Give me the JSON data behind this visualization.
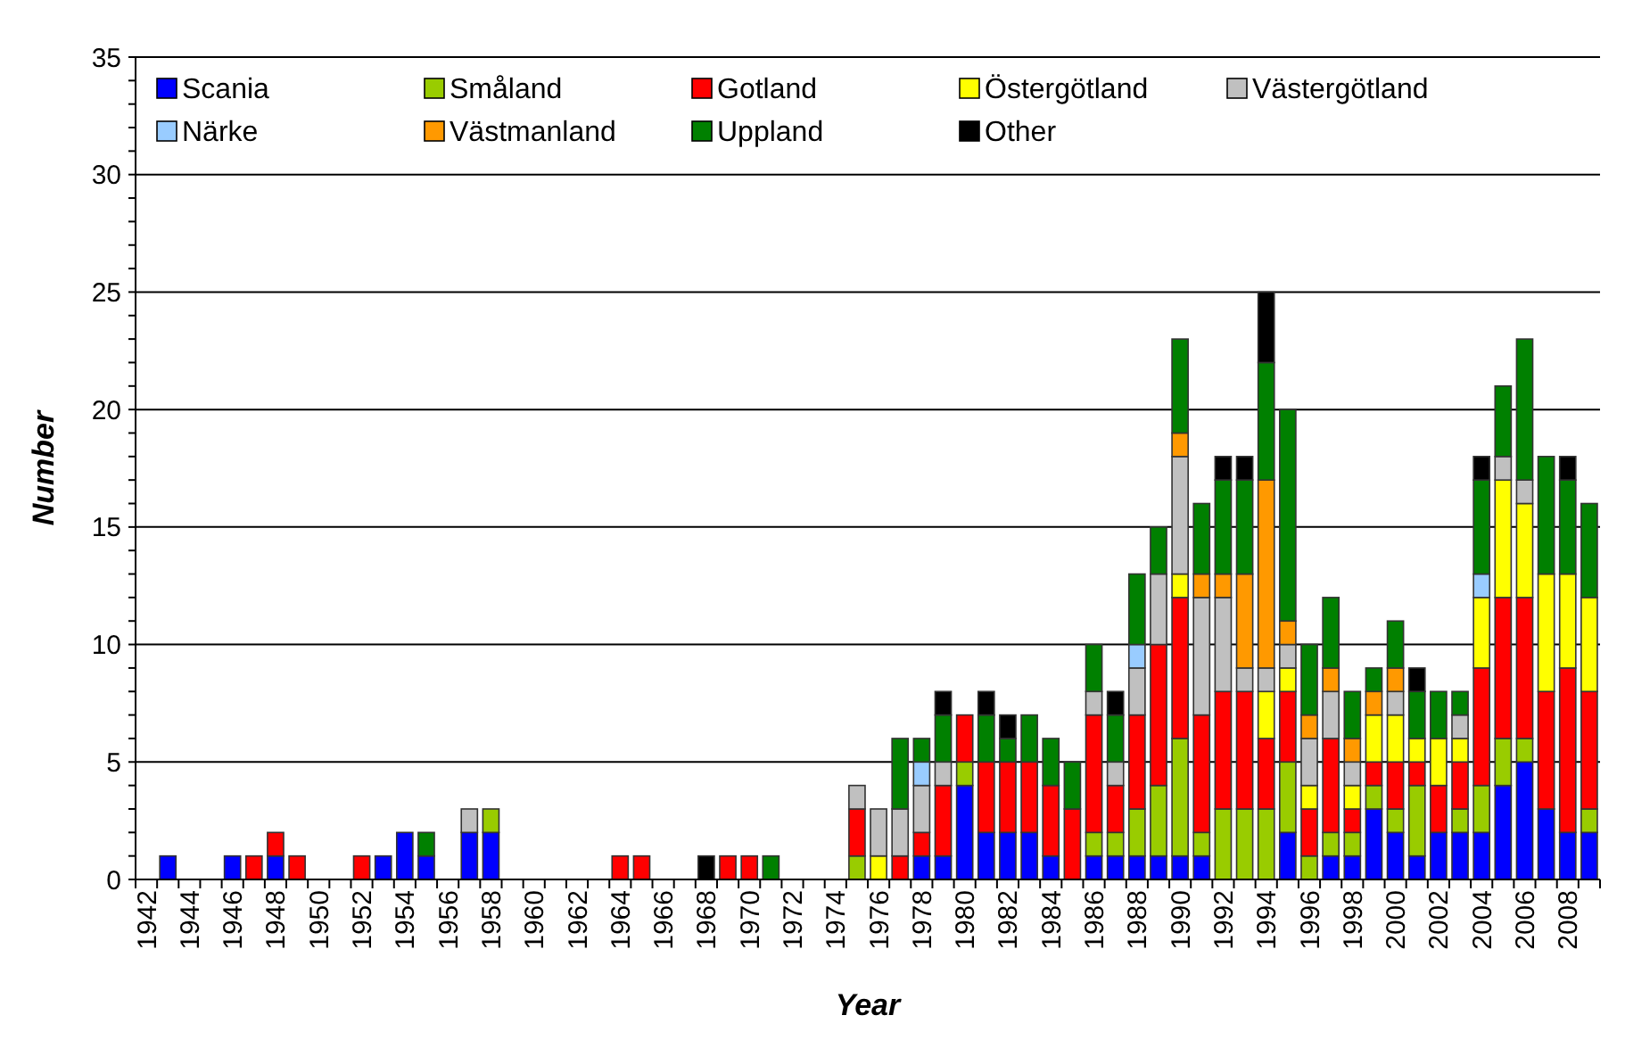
{
  "chart_data": {
    "type": "bar",
    "stacked": true,
    "xlabel": "Year",
    "ylabel": "Number",
    "categories": [
      "1942",
      null,
      "1944",
      null,
      "1946",
      null,
      "1948",
      null,
      "1950",
      null,
      "1952",
      null,
      "1954",
      null,
      "1956",
      null,
      "1958",
      null,
      "1960",
      null,
      "1962",
      null,
      "1964",
      null,
      "1966",
      null,
      "1968",
      null,
      "1970",
      null,
      "1972",
      null,
      "1974",
      null,
      "1976",
      null,
      "1978",
      null,
      "1980",
      null,
      "1982",
      null,
      "1984",
      null,
      "1986",
      null,
      "1988",
      null,
      "1990",
      null,
      "1992",
      null,
      "1994",
      null,
      "1996",
      null,
      "1998",
      null,
      "2000",
      null,
      "2002",
      null,
      "2004",
      null,
      "2006",
      null,
      "2008",
      null
    ],
    "series": [
      {
        "name": "Scania",
        "color": "#0000ff",
        "values": [
          null,
          1,
          null,
          null,
          1,
          null,
          1,
          null,
          null,
          null,
          null,
          1,
          2,
          1,
          null,
          2,
          2,
          null,
          null,
          null,
          null,
          null,
          null,
          null,
          null,
          null,
          null,
          null,
          null,
          null,
          null,
          null,
          null,
          null,
          null,
          null,
          1,
          1,
          4,
          2,
          2,
          2,
          1,
          null,
          1,
          1,
          1,
          1,
          1,
          1,
          null,
          null,
          null,
          2,
          null,
          1,
          1,
          3,
          2,
          1,
          2,
          2,
          2,
          4,
          5,
          3,
          2,
          2
        ]
      },
      {
        "name": "Småland",
        "color": "#99cc00",
        "values": [
          null,
          null,
          null,
          null,
          null,
          null,
          null,
          null,
          null,
          null,
          null,
          null,
          null,
          null,
          null,
          null,
          1,
          null,
          null,
          null,
          null,
          null,
          null,
          null,
          null,
          null,
          null,
          null,
          null,
          null,
          null,
          null,
          null,
          1,
          null,
          null,
          null,
          null,
          1,
          null,
          null,
          null,
          null,
          null,
          1,
          1,
          2,
          3,
          5,
          1,
          3,
          3,
          3,
          3,
          1,
          1,
          1,
          1,
          1,
          3,
          null,
          1,
          2,
          2,
          1,
          null,
          null,
          1
        ]
      },
      {
        "name": "Gotland",
        "color": "#ff0000",
        "values": [
          null,
          null,
          null,
          null,
          null,
          1,
          1,
          1,
          null,
          null,
          1,
          null,
          null,
          null,
          null,
          null,
          null,
          null,
          null,
          null,
          null,
          null,
          1,
          1,
          null,
          null,
          null,
          1,
          1,
          null,
          null,
          null,
          null,
          2,
          null,
          1,
          1,
          3,
          2,
          3,
          3,
          3,
          3,
          3,
          5,
          2,
          4,
          6,
          6,
          5,
          5,
          5,
          3,
          3,
          2,
          4,
          1,
          1,
          2,
          1,
          2,
          2,
          5,
          6,
          6,
          5,
          7,
          5
        ]
      },
      {
        "name": "Östergötland",
        "color": "#ffff00",
        "values": [
          null,
          null,
          null,
          null,
          null,
          null,
          null,
          null,
          null,
          null,
          null,
          null,
          null,
          null,
          null,
          null,
          null,
          null,
          null,
          null,
          null,
          null,
          null,
          null,
          null,
          null,
          null,
          null,
          null,
          null,
          null,
          null,
          null,
          null,
          1,
          null,
          null,
          null,
          null,
          null,
          null,
          null,
          null,
          null,
          null,
          null,
          null,
          null,
          1,
          null,
          null,
          null,
          2,
          1,
          1,
          null,
          1,
          2,
          2,
          1,
          2,
          1,
          3,
          5,
          4,
          5,
          4,
          4
        ]
      },
      {
        "name": "Västergötland",
        "color": "#c0c0c0",
        "values": [
          null,
          null,
          null,
          null,
          null,
          null,
          null,
          null,
          null,
          null,
          null,
          null,
          null,
          null,
          null,
          1,
          null,
          null,
          null,
          null,
          null,
          null,
          null,
          null,
          null,
          null,
          null,
          null,
          null,
          null,
          null,
          null,
          null,
          1,
          2,
          2,
          2,
          1,
          null,
          null,
          null,
          null,
          null,
          null,
          1,
          1,
          2,
          3,
          5,
          5,
          4,
          1,
          1,
          1,
          2,
          2,
          1,
          null,
          1,
          null,
          null,
          1,
          null,
          1,
          1,
          null,
          null,
          null
        ]
      },
      {
        "name": "Närke",
        "color": "#99ccff",
        "values": [
          null,
          null,
          null,
          null,
          null,
          null,
          null,
          null,
          null,
          null,
          null,
          null,
          null,
          null,
          null,
          null,
          null,
          null,
          null,
          null,
          null,
          null,
          null,
          null,
          null,
          null,
          null,
          null,
          null,
          null,
          null,
          null,
          null,
          null,
          null,
          null,
          1,
          null,
          null,
          null,
          null,
          null,
          null,
          null,
          null,
          null,
          1,
          null,
          null,
          null,
          null,
          null,
          null,
          null,
          null,
          null,
          null,
          null,
          null,
          null,
          null,
          null,
          1,
          null,
          null,
          null,
          null,
          null
        ]
      },
      {
        "name": "Västmanland",
        "color": "#ff9900",
        "values": [
          null,
          null,
          null,
          null,
          null,
          null,
          null,
          null,
          null,
          null,
          null,
          null,
          null,
          null,
          null,
          null,
          null,
          null,
          null,
          null,
          null,
          null,
          null,
          null,
          null,
          null,
          null,
          null,
          null,
          null,
          null,
          null,
          null,
          null,
          null,
          null,
          null,
          null,
          null,
          null,
          null,
          null,
          null,
          null,
          null,
          null,
          null,
          null,
          1,
          1,
          1,
          4,
          8,
          1,
          1,
          1,
          1,
          1,
          1,
          null,
          null,
          null,
          null,
          null,
          null,
          null,
          null,
          null
        ]
      },
      {
        "name": "Uppland",
        "color": "#008000",
        "values": [
          null,
          null,
          null,
          null,
          null,
          null,
          null,
          null,
          null,
          null,
          null,
          null,
          null,
          1,
          null,
          null,
          null,
          null,
          null,
          null,
          null,
          null,
          null,
          null,
          null,
          null,
          null,
          null,
          null,
          1,
          null,
          null,
          null,
          null,
          null,
          3,
          1,
          2,
          null,
          2,
          1,
          2,
          2,
          2,
          2,
          2,
          3,
          2,
          4,
          3,
          4,
          4,
          5,
          9,
          3,
          3,
          2,
          1,
          2,
          2,
          2,
          1,
          4,
          3,
          6,
          5,
          4,
          4
        ]
      },
      {
        "name": "Other",
        "color": "#000000",
        "values": [
          null,
          null,
          null,
          null,
          null,
          null,
          null,
          null,
          null,
          null,
          null,
          null,
          null,
          null,
          null,
          null,
          null,
          null,
          null,
          null,
          null,
          null,
          null,
          null,
          null,
          null,
          1,
          null,
          null,
          null,
          null,
          null,
          null,
          null,
          null,
          null,
          null,
          1,
          null,
          1,
          1,
          null,
          null,
          null,
          null,
          1,
          null,
          null,
          null,
          null,
          1,
          1,
          3,
          null,
          null,
          null,
          null,
          null,
          null,
          1,
          null,
          null,
          1,
          null,
          null,
          null,
          1,
          null
        ]
      }
    ],
    "ylim": [
      0,
      35
    ],
    "yticks": [
      0,
      {
        "value": 1,
        "label": null
      },
      {
        "value": 2,
        "label": null
      },
      {
        "value": 3,
        "label": null
      },
      {
        "value": 4,
        "label": null
      },
      5,
      {
        "value": 6,
        "label": null
      },
      {
        "value": 7,
        "label": null
      },
      {
        "value": 8,
        "label": null
      },
      {
        "value": 9,
        "label": null
      },
      10,
      {
        "value": 11,
        "label": null
      },
      {
        "value": 12,
        "label": null
      },
      {
        "value": 13,
        "label": null
      },
      {
        "value": 14,
        "label": null
      },
      15,
      {
        "value": 16,
        "label": null
      },
      {
        "value": 17,
        "label": null
      },
      {
        "value": 18,
        "label": null
      },
      {
        "value": 19,
        "label": null
      },
      20,
      {
        "value": 21,
        "label": null
      },
      {
        "value": 22,
        "label": null
      },
      {
        "value": 23,
        "label": null
      },
      {
        "value": 24,
        "label": null
      },
      25,
      {
        "value": 26,
        "label": null
      },
      {
        "value": 27,
        "label": null
      },
      {
        "value": 28,
        "label": null
      },
      {
        "value": 29,
        "label": null
      },
      30,
      {
        "value": 31,
        "label": null
      },
      {
        "value": 32,
        "label": null
      },
      {
        "value": 33,
        "label": null
      },
      {
        "value": 34,
        "label": null
      },
      35
    ],
    "grid": "y",
    "legend": "top"
  }
}
